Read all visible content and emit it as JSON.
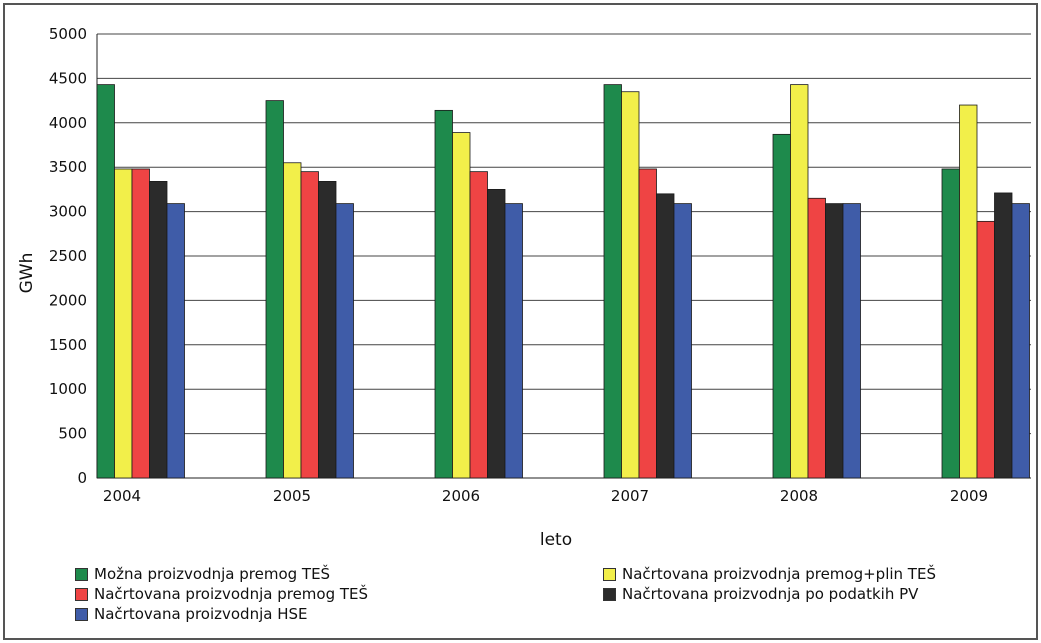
{
  "chart_data": {
    "type": "bar",
    "title": "",
    "xlabel": "leto",
    "ylabel": "GWh",
    "ylim": [
      0,
      5000
    ],
    "yticks": [
      0,
      500,
      1000,
      1500,
      2000,
      2500,
      3000,
      3500,
      4000,
      4500,
      5000
    ],
    "grid": true,
    "legend_position": "bottom",
    "categories": [
      "2004",
      "2005",
      "2006",
      "2007",
      "2008",
      "2009"
    ],
    "series": [
      {
        "name": "Možna proizvodnja premog TEŠ",
        "color": "#1e8a4c",
        "values": [
          4430,
          4250,
          4140,
          4430,
          3870,
          3480
        ]
      },
      {
        "name": "Načrtovana proizvodnja premog+plin TEŠ",
        "color": "#f2ef4a",
        "values": [
          3480,
          3550,
          3890,
          4350,
          4430,
          4200
        ]
      },
      {
        "name": "Načrtovana proizvodnja premog TEŠ",
        "color": "#ef4444",
        "values": [
          3480,
          3450,
          3450,
          3480,
          3150,
          2890
        ]
      },
      {
        "name": "Načrtovana proizvodnja po podatkih PV",
        "color": "#2b2b2b",
        "values": [
          3340,
          3340,
          3250,
          3200,
          3090,
          3210
        ]
      },
      {
        "name": "Načrtovana proizvodnja HSE",
        "color": "#3f5ca8",
        "values": [
          3090,
          3090,
          3090,
          3090,
          3090,
          3090
        ]
      }
    ]
  }
}
